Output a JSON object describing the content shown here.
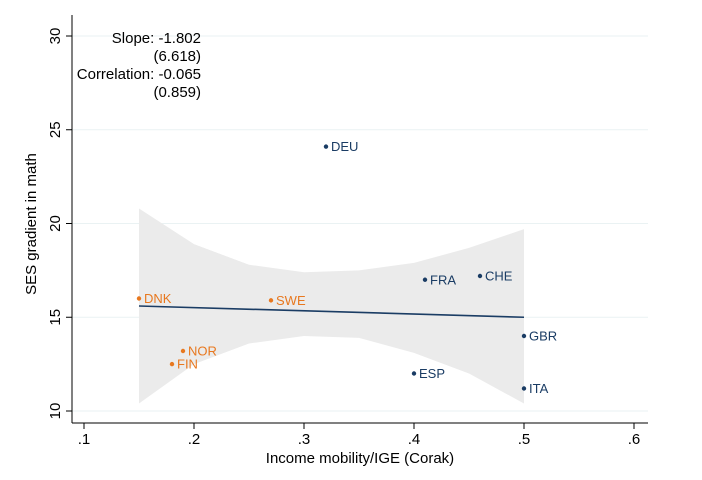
{
  "chart_data": {
    "type": "scatter",
    "xlabel": "Income mobility/IGE (Corak)",
    "ylabel": "SES gradient in math",
    "xlim": [
      0.1,
      0.6
    ],
    "ylim": [
      10,
      30
    ],
    "x_ticks": [
      0.1,
      0.2,
      0.3,
      0.4,
      0.5,
      0.6
    ],
    "x_tick_labels": [
      ".1",
      ".2",
      ".3",
      ".4",
      ".5",
      ".6"
    ],
    "y_ticks": [
      10,
      15,
      20,
      25,
      30
    ],
    "y_tick_labels": [
      "10",
      "15",
      "20",
      "25",
      "30"
    ],
    "grid": "horizontal",
    "colors": {
      "navy": "#1a3c64",
      "orange": "#e8781f",
      "band": "#ebebeb"
    },
    "points": [
      {
        "label": "DEU",
        "x": 0.32,
        "y": 24.1,
        "color": "navy"
      },
      {
        "label": "FRA",
        "x": 0.41,
        "y": 17.0,
        "color": "navy"
      },
      {
        "label": "CHE",
        "x": 0.46,
        "y": 17.2,
        "color": "navy"
      },
      {
        "label": "GBR",
        "x": 0.5,
        "y": 14.0,
        "color": "navy"
      },
      {
        "label": "ESP",
        "x": 0.4,
        "y": 12.0,
        "color": "navy"
      },
      {
        "label": "ITA",
        "x": 0.5,
        "y": 11.2,
        "color": "navy"
      },
      {
        "label": "DNK",
        "x": 0.15,
        "y": 16.0,
        "color": "orange"
      },
      {
        "label": "SWE",
        "x": 0.27,
        "y": 15.9,
        "color": "orange"
      },
      {
        "label": "NOR",
        "x": 0.19,
        "y": 13.2,
        "color": "orange"
      },
      {
        "label": "FIN",
        "x": 0.18,
        "y": 12.5,
        "color": "orange"
      }
    ],
    "fit_line": {
      "x": [
        0.15,
        0.5
      ],
      "y": [
        15.6,
        15.0
      ]
    },
    "confidence_band": {
      "x": [
        0.15,
        0.2,
        0.25,
        0.3,
        0.35,
        0.4,
        0.45,
        0.5
      ],
      "upper": [
        20.8,
        18.9,
        17.8,
        17.4,
        17.5,
        17.9,
        18.7,
        19.7
      ],
      "lower": [
        10.4,
        12.5,
        13.6,
        14.0,
        13.9,
        13.1,
        12.0,
        10.4
      ]
    },
    "annotations": {
      "slope": "Slope: -1.802",
      "slope_se": "(6.618)",
      "correlation": "Correlation: -0.065",
      "correlation_se": "(0.859)"
    }
  }
}
